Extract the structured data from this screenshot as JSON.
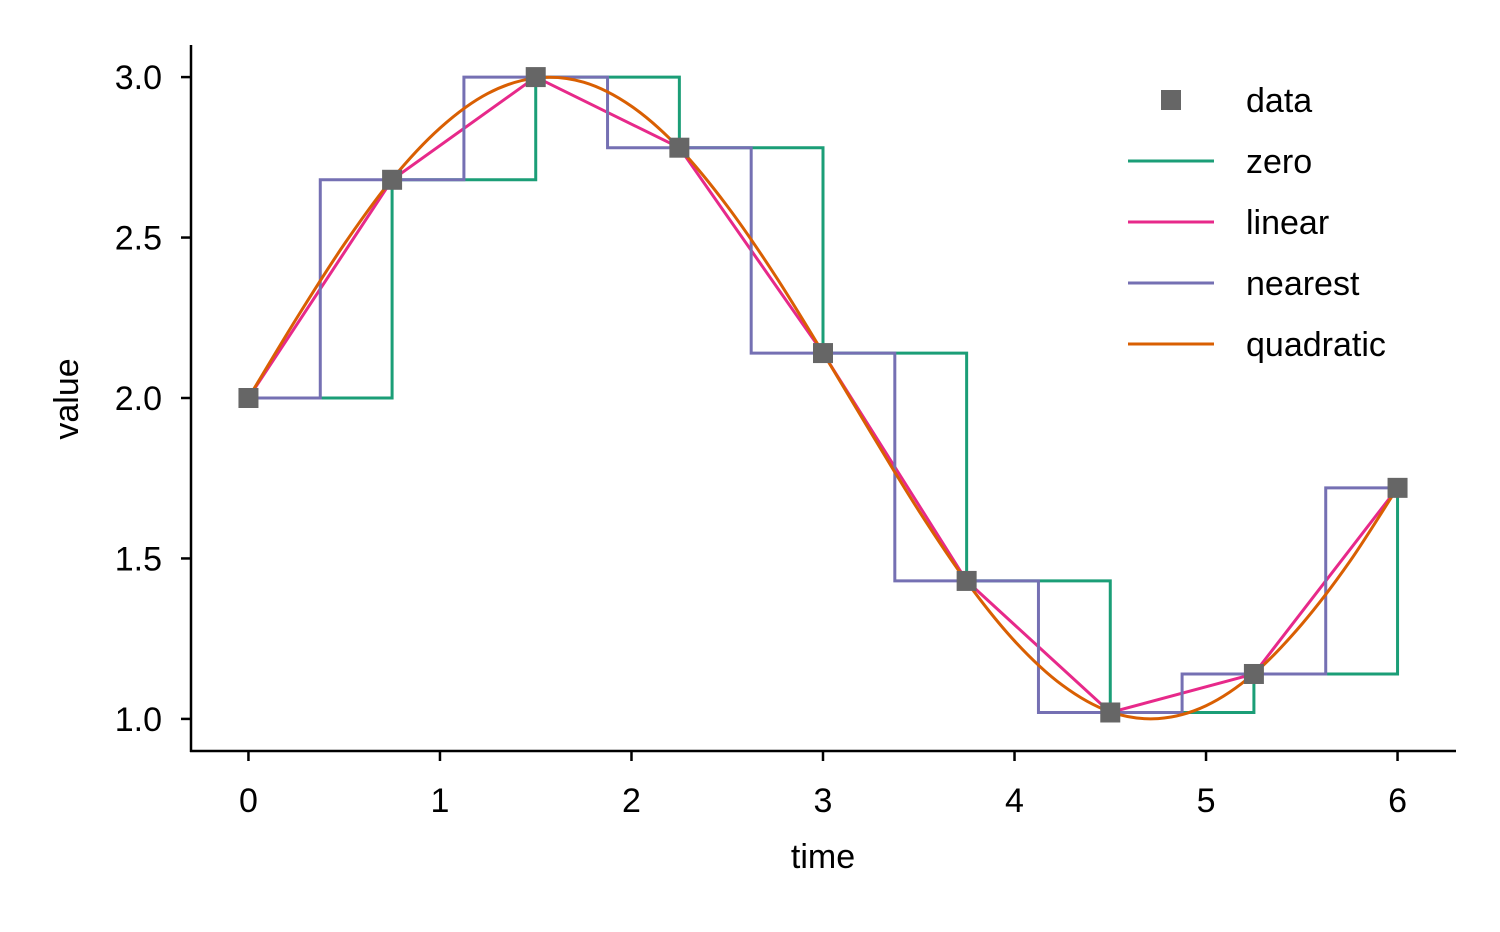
{
  "chart_data": {
    "type": "line",
    "title": "",
    "xlabel": "time",
    "ylabel": "value",
    "xlim": [
      -0.3,
      6.3
    ],
    "ylim": [
      0.9,
      3.1
    ],
    "xticks": [
      0,
      1,
      2,
      3,
      4,
      5,
      6
    ],
    "xtick_labels": [
      "0",
      "1",
      "2",
      "3",
      "4",
      "5",
      "6"
    ],
    "yticks": [
      1.0,
      1.5,
      2.0,
      2.5,
      3.0
    ],
    "ytick_labels": [
      "1.0",
      "1.5",
      "2.0",
      "2.5",
      "3.0"
    ],
    "grid": false,
    "legend_position": "top-right",
    "data": {
      "name": "data",
      "color": "#666666",
      "marker": "square",
      "x": [
        0,
        0.75,
        1.5,
        2.25,
        3.0,
        3.75,
        4.5,
        5.25,
        6.0
      ],
      "y": [
        2.0,
        2.68,
        3.0,
        2.78,
        2.14,
        1.43,
        1.02,
        1.14,
        1.72
      ]
    },
    "series": [
      {
        "name": "zero",
        "color": "#1b9e77",
        "kind": "step-previous"
      },
      {
        "name": "linear",
        "color": "#e7298a",
        "kind": "linear"
      },
      {
        "name": "nearest",
        "color": "#7570b3",
        "kind": "step-nearest"
      },
      {
        "name": "quadratic",
        "color": "#d95f02",
        "kind": "smooth",
        "x": [
          0,
          0.25,
          0.5,
          0.75,
          1,
          1.25,
          1.5,
          1.75,
          2,
          2.25,
          2.5,
          2.75,
          3,
          3.25,
          3.5,
          3.75,
          4,
          4.25,
          4.5,
          4.75,
          5,
          5.25,
          5.5,
          5.75,
          6
        ],
        "y": [
          2.0,
          2.247,
          2.479,
          2.682,
          2.841,
          2.949,
          2.997,
          2.984,
          2.909,
          2.778,
          2.598,
          2.382,
          2.141,
          1.892,
          1.649,
          1.428,
          1.243,
          1.105,
          1.022,
          1.001,
          1.041,
          1.141,
          1.295,
          1.49,
          1.721
        ]
      }
    ]
  }
}
